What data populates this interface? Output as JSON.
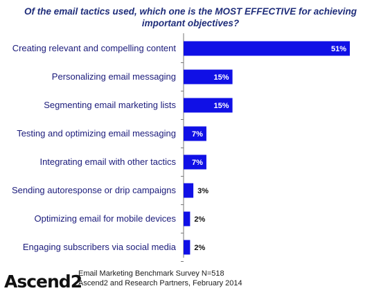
{
  "chart_data": {
    "type": "bar",
    "orientation": "horizontal",
    "title": "Of the email tactics used, which one is the MOST EFFECTIVE for achieving important objectives?",
    "categories": [
      "Creating relevant and compelling content",
      "Personalizing email messaging",
      "Segmenting email marketing lists",
      "Testing and optimizing email messaging",
      "Integrating email with other tactics",
      "Sending autoresponse or drip campaigns",
      "Optimizing email for mobile devices",
      "Engaging subscribers via social media"
    ],
    "values": [
      51,
      15,
      15,
      7,
      7,
      3,
      2,
      2
    ],
    "value_labels": [
      "51%",
      "15%",
      "15%",
      "7%",
      "7%",
      "3%",
      "2%",
      "2%"
    ],
    "xlim": [
      0,
      51
    ],
    "grid": false,
    "legend": "none",
    "bar_color": "#1010e6"
  },
  "footer": {
    "line1": "Email Marketing Benchmark Survey N=518",
    "line2": "Ascend2 and Research Partners, February 2014"
  },
  "logo": {
    "text": "Ascend2"
  }
}
